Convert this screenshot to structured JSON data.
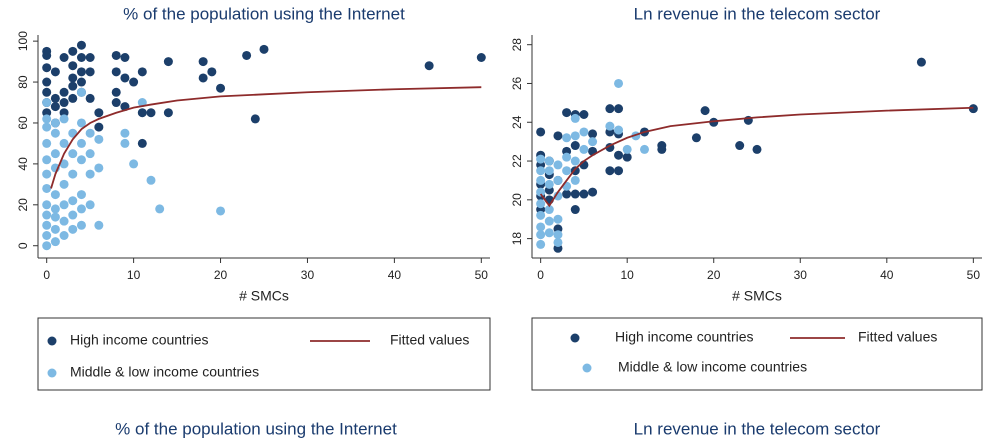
{
  "chart_data": [
    {
      "type": "scatter",
      "title": "% of the population using the Internet",
      "xlabel": "# SMCs",
      "xlim": [
        -1,
        51
      ],
      "ylim": [
        -6,
        103
      ],
      "xticks": [
        0,
        10,
        20,
        30,
        40,
        50
      ],
      "yticks": [
        0,
        20,
        40,
        60,
        80,
        100
      ],
      "series": [
        {
          "name": "High income countries",
          "color": "#1c3f6a",
          "x": [
            0,
            0,
            0,
            0,
            0,
            0,
            0,
            1,
            1,
            1,
            1,
            2,
            2,
            2,
            2,
            3,
            3,
            3,
            3,
            3,
            4,
            4,
            4,
            4,
            4,
            5,
            5,
            5,
            6,
            6,
            8,
            8,
            8,
            8,
            9,
            9,
            9,
            10,
            11,
            11,
            11,
            12,
            14,
            14,
            18,
            18,
            19,
            20,
            23,
            24,
            25,
            44,
            50
          ],
          "values": [
            95,
            93,
            87,
            80,
            75,
            70,
            65,
            72,
            68,
            85,
            60,
            92,
            75,
            70,
            65,
            88,
            82,
            78,
            72,
            95,
            98,
            92,
            85,
            80,
            75,
            92,
            85,
            72,
            58,
            65,
            93,
            85,
            75,
            70,
            92,
            82,
            68,
            80,
            85,
            65,
            50,
            65,
            90,
            65,
            90,
            82,
            85,
            77,
            93,
            62,
            96,
            88,
            92
          ]
        },
        {
          "name": "Middle & low income countries",
          "color": "#7db9e3",
          "x": [
            0,
            0,
            0,
            0,
            0,
            0,
            0,
            0,
            0,
            0,
            0,
            0,
            1,
            1,
            1,
            1,
            1,
            1,
            1,
            1,
            1,
            2,
            2,
            2,
            2,
            2,
            2,
            2,
            3,
            3,
            3,
            3,
            3,
            3,
            4,
            4,
            4,
            4,
            4,
            4,
            4,
            5,
            5,
            5,
            5,
            6,
            6,
            6,
            9,
            9,
            10,
            11,
            12,
            13,
            20
          ],
          "values": [
            0,
            5,
            10,
            15,
            20,
            28,
            35,
            42,
            50,
            58,
            62,
            70,
            2,
            8,
            14,
            18,
            25,
            38,
            45,
            55,
            60,
            5,
            12,
            20,
            30,
            40,
            50,
            62,
            8,
            15,
            22,
            35,
            45,
            55,
            10,
            18,
            25,
            42,
            50,
            60,
            75,
            20,
            35,
            45,
            55,
            10,
            38,
            52,
            50,
            55,
            40,
            70,
            32,
            18,
            17
          ]
        },
        {
          "name": "Fitted values",
          "type": "line",
          "color": "#8e2b2b",
          "x": [
            0.5,
            1,
            2,
            3,
            4,
            5,
            6,
            8,
            10,
            12,
            15,
            20,
            25,
            30,
            40,
            50
          ],
          "values": [
            28,
            35,
            45,
            52,
            57,
            60,
            62,
            65,
            67.5,
            69,
            71,
            73,
            74,
            75,
            76.5,
            77.5
          ]
        }
      ]
    },
    {
      "type": "scatter",
      "title": "Ln revenue in the telecom sector",
      "xlabel": "# SMCs",
      "xlim": [
        -1,
        51
      ],
      "ylim": [
        17,
        28.5
      ],
      "xticks": [
        0,
        10,
        20,
        30,
        40,
        50
      ],
      "yticks": [
        18,
        20,
        22,
        24,
        26,
        28
      ],
      "series": [
        {
          "name": "High income countries",
          "color": "#1c3f6a",
          "x": [
            0,
            0,
            0,
            0,
            0,
            0,
            1,
            1,
            1,
            1,
            2,
            2,
            2,
            2,
            3,
            3,
            3,
            4,
            4,
            4,
            4,
            4,
            5,
            5,
            5,
            6,
            6,
            6,
            8,
            8,
            8,
            8,
            9,
            9,
            9,
            9,
            10,
            12,
            14,
            14,
            18,
            19,
            20,
            23,
            24,
            25,
            44,
            50
          ],
          "values": [
            23.5,
            22.3,
            21.8,
            20.8,
            20.2,
            19.5,
            22,
            21.3,
            20.5,
            20,
            23.3,
            21,
            18.5,
            17.5,
            24.5,
            22.5,
            20.3,
            24.4,
            22.8,
            21.5,
            20.3,
            19.5,
            24.4,
            21.8,
            20.3,
            23.4,
            22.5,
            20.4,
            24.7,
            23.5,
            22.7,
            21.5,
            24.7,
            23.4,
            22.3,
            21.5,
            22.2,
            23.5,
            22.8,
            22.6,
            23.2,
            24.6,
            24,
            22.8,
            24.1,
            22.6,
            27.1,
            24.7
          ]
        },
        {
          "name": "Middle & low income countries",
          "color": "#7db9e3",
          "x": [
            0,
            0,
            0,
            0,
            0,
            0,
            0,
            0,
            0,
            1,
            1,
            1,
            1,
            1,
            1,
            2,
            2,
            2,
            2,
            2,
            2,
            3,
            3,
            3,
            3,
            4,
            4,
            4,
            4,
            5,
            5,
            6,
            8,
            9,
            9,
            10,
            11,
            12
          ],
          "values": [
            22.1,
            21.5,
            21,
            20.4,
            19.8,
            19.2,
            18.6,
            18.2,
            17.7,
            22,
            21.5,
            20.8,
            19.5,
            18.9,
            18.3,
            21.8,
            21,
            20.2,
            19,
            17.8,
            18.2,
            23.2,
            22.2,
            21.5,
            20.7,
            24.2,
            23.3,
            22,
            21,
            23.5,
            22.6,
            23,
            23.8,
            26,
            23.6,
            22.6,
            23.3,
            22.6
          ]
        },
        {
          "name": "Fitted values",
          "type": "line",
          "color": "#8e2b2b",
          "x": [
            0,
            1,
            2,
            3,
            4,
            5,
            6,
            8,
            10,
            12,
            15,
            20,
            25,
            30,
            40,
            50
          ],
          "values": [
            20.3,
            19.7,
            20.4,
            21,
            21.6,
            22,
            22.3,
            22.8,
            23.2,
            23.5,
            23.8,
            24.05,
            24.25,
            24.4,
            24.6,
            24.75
          ]
        }
      ]
    }
  ],
  "lower_titles": [
    "% of the population using the Internet",
    "Ln revenue in the telecom sector"
  ]
}
